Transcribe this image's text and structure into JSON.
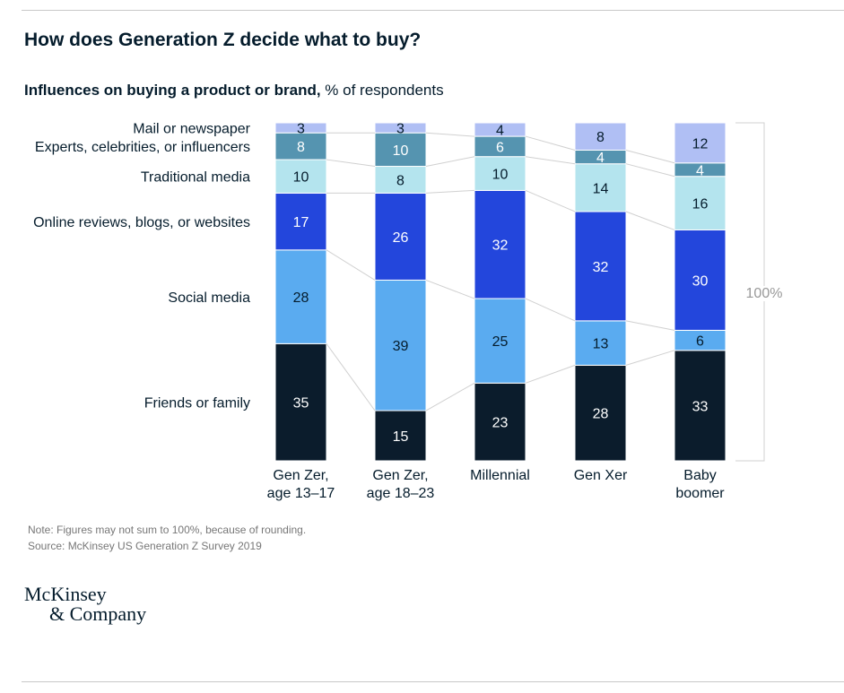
{
  "title": "How does Generation Z decide what to buy?",
  "subtitle_bold": "Influences on buying a product or brand,",
  "subtitle_rest": " % of respondents",
  "note": "Note: Figures may not sum to 100%, because of rounding.",
  "source": "Source: McKinsey US Generation Z Survey 2019",
  "logo": {
    "line1": "McKinsey",
    "line2": "& Company"
  },
  "chart_data": {
    "type": "bar",
    "stacked": true,
    "categories": [
      [
        "Gen Zer,",
        "age 13–17"
      ],
      [
        "Gen Zer,",
        "age 18–23"
      ],
      [
        "Millennial"
      ],
      [
        "Gen Xer"
      ],
      [
        "Baby",
        "boomer"
      ]
    ],
    "series": [
      {
        "name": "Friends or family",
        "values": [
          35,
          15,
          23,
          28,
          33
        ],
        "color": "#0b1c2c",
        "text_color": "#ffffff"
      },
      {
        "name": "Social media",
        "values": [
          28,
          39,
          25,
          13,
          6
        ],
        "color": "#5aabf0",
        "text_color": "#051c2c"
      },
      {
        "name": "Online reviews, blogs, or websites",
        "values": [
          17,
          26,
          32,
          32,
          30
        ],
        "color": "#2346dc",
        "text_color": "#ffffff"
      },
      {
        "name": "Traditional media",
        "values": [
          10,
          8,
          10,
          14,
          16
        ],
        "color": "#b4e4ee",
        "text_color": "#051c2c"
      },
      {
        "name": "Experts, celebrities, or influencers",
        "values": [
          8,
          10,
          6,
          4,
          4
        ],
        "color": "#5594b0",
        "text_color": "#ffffff"
      },
      {
        "name": "Mail or newspaper",
        "values": [
          3,
          3,
          4,
          8,
          12
        ],
        "color": "#b0bff4",
        "text_color": "#051c2c"
      }
    ],
    "total_label": "100%",
    "legend": "left"
  }
}
